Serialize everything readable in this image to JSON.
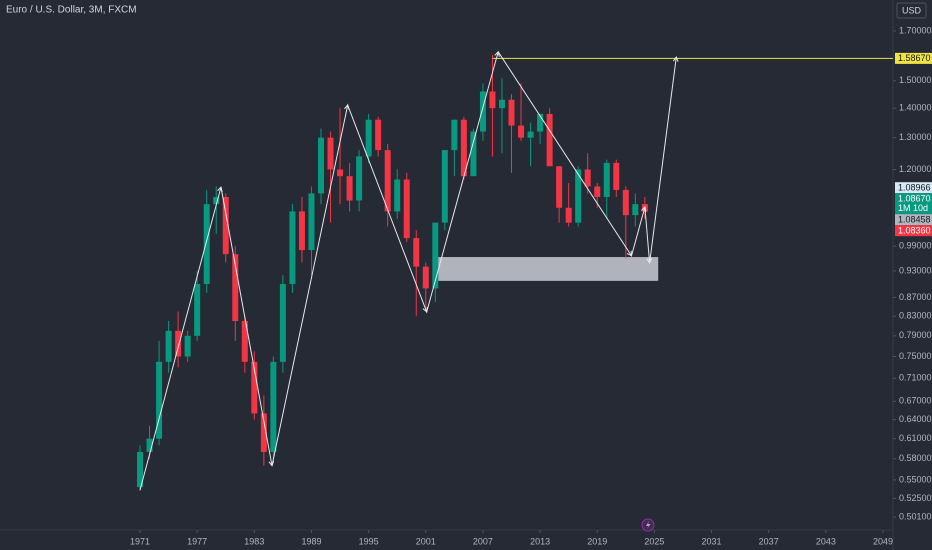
{
  "chart_data": {
    "type": "candlestick",
    "title": "Euro / U.S. Dollar, 3M, FXCM",
    "currency": "USD",
    "log_scale": true,
    "grid": false,
    "up_color": "#089981",
    "down_color": "#f23645",
    "xlim": [
      1956.3,
      2050.05
    ],
    "xticks": [
      1971,
      1977,
      1983,
      1989,
      1995,
      2001,
      2007,
      2013,
      2019,
      2025,
      2031,
      2037,
      2043,
      2049
    ],
    "ylim": [
      0.4849,
      1.8375
    ],
    "yticks": [
      {
        "value": 1.7,
        "label": "1.70000"
      },
      {
        "value": 1.5,
        "label": "1.50000"
      },
      {
        "value": 1.4,
        "label": "1.40000"
      },
      {
        "value": 1.3,
        "label": "1.30000"
      },
      {
        "value": 1.2,
        "label": "1.20000"
      },
      {
        "value": 0.99,
        "label": "0.99000"
      },
      {
        "value": 0.93,
        "label": "0.93000"
      },
      {
        "value": 0.87,
        "label": "0.87000"
      },
      {
        "value": 0.83,
        "label": "0.83000"
      },
      {
        "value": 0.79,
        "label": "0.79000"
      },
      {
        "value": 0.75,
        "label": "0.75000"
      },
      {
        "value": 0.71,
        "label": "0.71000"
      },
      {
        "value": 0.67,
        "label": "0.67000"
      },
      {
        "value": 0.64,
        "label": "0.64000"
      },
      {
        "value": 0.61,
        "label": "0.61000"
      },
      {
        "value": 0.58,
        "label": "0.58000"
      },
      {
        "value": 0.55,
        "label": "0.55000"
      },
      {
        "value": 0.525,
        "label": "0.52500"
      },
      {
        "value": 0.501,
        "label": "0.50100"
      }
    ],
    "x": [
      1971,
      1972,
      1973,
      1974,
      1975,
      1976,
      1977,
      1978,
      1979,
      1980,
      1981,
      1982,
      1983,
      1984,
      1985,
      1986,
      1987,
      1988,
      1989,
      1990,
      1991,
      1992,
      1993,
      1994,
      1995,
      1996,
      1997,
      1998,
      1999,
      2000,
      2001,
      2002,
      2003,
      2004,
      2005,
      2006,
      2007,
      2008,
      2009,
      2010,
      2011,
      2012,
      2013,
      2014,
      2015,
      2016,
      2017,
      2018,
      2019,
      2020,
      2021,
      2022,
      2023,
      2024
    ],
    "open": [
      0.54,
      0.59,
      0.61,
      0.74,
      0.8,
      0.75,
      0.79,
      0.9,
      1.1,
      1.12,
      0.97,
      0.82,
      0.74,
      0.65,
      0.59,
      0.74,
      0.9,
      1.08,
      0.98,
      1.13,
      1.3,
      1.2,
      1.18,
      1.11,
      1.24,
      1.36,
      1.26,
      1.08,
      1.17,
      1.01,
      0.94,
      0.89,
      1.05,
      1.26,
      1.36,
      1.18,
      1.32,
      1.46,
      1.4,
      1.43,
      1.34,
      1.3,
      1.32,
      1.38,
      1.21,
      1.09,
      1.05,
      1.2,
      1.15,
      1.12,
      1.22,
      1.14,
      1.07,
      1.1
    ],
    "high": [
      0.6,
      0.63,
      0.78,
      0.82,
      0.84,
      0.8,
      0.93,
      1.14,
      1.15,
      1.13,
      0.99,
      0.83,
      0.76,
      0.68,
      0.75,
      0.92,
      1.1,
      1.12,
      1.15,
      1.33,
      1.32,
      1.4,
      1.22,
      1.26,
      1.38,
      1.37,
      1.28,
      1.2,
      1.19,
      1.03,
      0.95,
      1.05,
      1.26,
      1.36,
      1.37,
      1.33,
      1.49,
      1.6,
      1.51,
      1.45,
      1.49,
      1.35,
      1.38,
      1.4,
      1.21,
      1.16,
      1.21,
      1.25,
      1.16,
      1.23,
      1.23,
      1.15,
      1.13,
      1.12
    ],
    "low": [
      0.535,
      0.58,
      0.6,
      0.72,
      0.73,
      0.74,
      0.78,
      0.88,
      1.02,
      0.95,
      0.78,
      0.72,
      0.64,
      0.57,
      0.58,
      0.72,
      0.88,
      0.95,
      0.92,
      1.1,
      1.05,
      1.1,
      1.08,
      1.08,
      1.22,
      1.24,
      1.04,
      1.06,
      1.0,
      0.83,
      0.84,
      0.86,
      1.03,
      1.18,
      1.17,
      1.18,
      1.29,
      1.24,
      1.25,
      1.19,
      1.29,
      1.21,
      1.28,
      1.21,
      1.05,
      1.04,
      1.04,
      1.13,
      1.09,
      1.06,
      1.12,
      0.96,
      1.04,
      1.06
    ],
    "close": [
      0.59,
      0.61,
      0.74,
      0.8,
      0.75,
      0.79,
      0.9,
      1.1,
      1.12,
      0.97,
      0.82,
      0.74,
      0.65,
      0.59,
      0.74,
      0.9,
      1.08,
      0.98,
      1.13,
      1.3,
      1.2,
      1.18,
      1.11,
      1.24,
      1.36,
      1.26,
      1.08,
      1.17,
      1.01,
      0.94,
      0.89,
      1.05,
      1.26,
      1.36,
      1.18,
      1.32,
      1.46,
      1.4,
      1.43,
      1.34,
      1.3,
      1.32,
      1.38,
      1.21,
      1.09,
      1.05,
      1.2,
      1.15,
      1.12,
      1.22,
      1.14,
      1.07,
      1.1,
      1.08
    ],
    "zigzag": {
      "color": "#e8e8ec",
      "x": [
        1971.0,
        1979.5,
        1984.86,
        1992.8,
        2001.1,
        2008.6,
        2022.6,
        2024.0,
        2024.5,
        2027.3
      ],
      "y": [
        0.536,
        1.148,
        0.57,
        1.411,
        0.839,
        1.613,
        0.966,
        1.092,
        0.949,
        1.592
      ]
    },
    "zone": {
      "color": "#c9cbd3",
      "x": [
        2002.1,
        2025.4
      ],
      "y": [
        0.963,
        0.907
      ]
    },
    "hline": {
      "color": "#f0e442",
      "x_start": 2008.0,
      "value": {
        "value": 1.5867,
        "label": "1.58670"
      }
    },
    "price_labels": [
      {
        "value": 1.08966,
        "color": "#d6e6f2",
        "text_color": "#131722"
      },
      {
        "value": {
          "value": 1.0867,
          "label": "1.08670"
        },
        "countdown": "1M 10d",
        "color": "#089981",
        "text_color": "#ffffff"
      },
      {
        "value": 1.08458,
        "color": "#b2b5be",
        "text_color": "#131722"
      },
      {
        "value": {
          "value": 1.0836,
          "label": "1.08360"
        },
        "color": "#f23645",
        "text_color": "#ffffff"
      }
    ]
  }
}
